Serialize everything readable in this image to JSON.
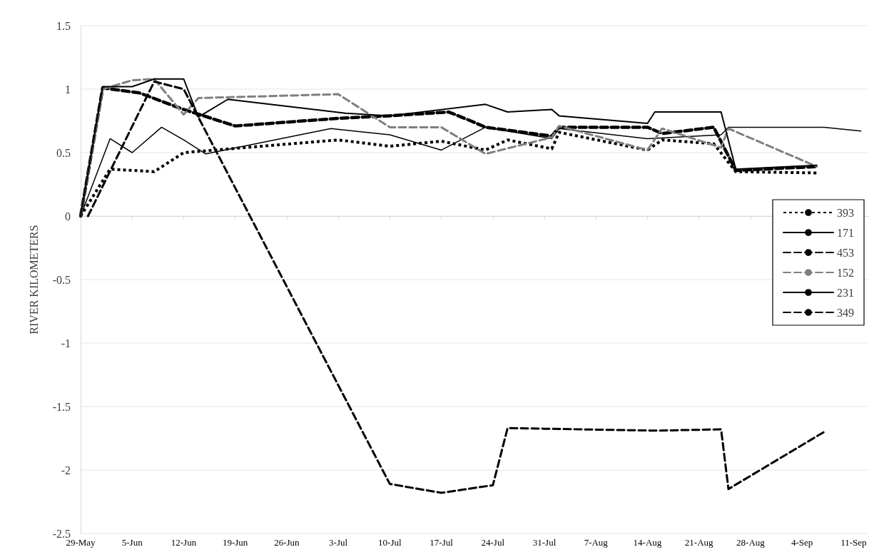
{
  "chart_data": {
    "type": "line",
    "ylabel": "RIVER KILOMETERS",
    "xlim": [
      "--05-29",
      "--09-13"
    ],
    "xticks": [
      {
        "value": "--05-29",
        "label": "29-May"
      },
      {
        "value": "--06-05",
        "label": "5-Jun"
      },
      {
        "value": "--06-12",
        "label": "12-Jun"
      },
      {
        "value": "--06-19",
        "label": "19-Jun"
      },
      {
        "value": "--06-26",
        "label": "26-Jun"
      },
      {
        "value": "--07-03",
        "label": "3-Jul"
      },
      {
        "value": "--07-10",
        "label": "10-Jul"
      },
      {
        "value": "--07-17",
        "label": "17-Jul"
      },
      {
        "value": "--07-24",
        "label": "24-Jul"
      },
      {
        "value": "--07-31",
        "label": "31-Jul"
      },
      {
        "value": "--08-07",
        "label": "7-Aug"
      },
      {
        "value": "--08-14",
        "label": "14-Aug"
      },
      {
        "value": "--08-21",
        "label": "21-Aug"
      },
      {
        "value": "--08-28",
        "label": "28-Aug"
      },
      {
        "value": "--09-04",
        "label": "4-Sep"
      },
      {
        "value": "--09-11",
        "label": "11-Sep"
      }
    ],
    "ylim": [
      -2.5,
      1.5
    ],
    "yticks": [
      -2.5,
      -2,
      -1.5,
      -1,
      -0.5,
      0,
      0.5,
      1,
      1.5
    ],
    "grid": "y",
    "legend": "right",
    "marker": "none",
    "series": [
      {
        "name": "393",
        "color": "#000000",
        "line_style": "dotted",
        "x": [
          "--05-29",
          "--06-02",
          "--06-08",
          "--06-12",
          "--07-03",
          "--07-10",
          "--07-17",
          "--07-23",
          "--07-26",
          "--08-01",
          "--08-02",
          "--08-14",
          "--08-16",
          "--08-23",
          "--08-26",
          "--09-06"
        ],
        "values": [
          0,
          0.37,
          0.35,
          0.5,
          0.6,
          0.55,
          0.59,
          0.52,
          0.6,
          0.53,
          0.66,
          0.52,
          0.6,
          0.57,
          0.35,
          0.34
        ]
      },
      {
        "name": "171",
        "color": "#000000",
        "line_style": "solid",
        "x": [
          "--05-29",
          "--06-02",
          "--06-05",
          "--06-09",
          "--06-12",
          "--06-15",
          "--07-02",
          "--07-10",
          "--07-17",
          "--07-23",
          "--08-01",
          "--08-02",
          "--08-14",
          "--08-24",
          "--08-25",
          "--09-07",
          "--09-12"
        ],
        "values": [
          0,
          0.61,
          0.5,
          0.7,
          0.6,
          0.49,
          0.69,
          0.64,
          0.52,
          0.7,
          0.61,
          0.69,
          0.61,
          0.64,
          0.7,
          0.7,
          0.67
        ]
      },
      {
        "name": "453",
        "color": "#000000",
        "line_style": "dashed",
        "x": [
          "--05-29",
          "--06-01",
          "--06-06",
          "--06-12",
          "--06-19",
          "--07-03",
          "--07-10",
          "--07-18",
          "--07-21",
          "--07-23",
          "--08-01",
          "--08-02",
          "--08-07",
          "--08-14",
          "--08-16",
          "--08-23",
          "--08-26",
          "--09-06"
        ],
        "values": [
          0,
          1.01,
          0.97,
          0.84,
          0.71,
          0.77,
          0.79,
          0.82,
          0.75,
          0.7,
          0.63,
          0.7,
          0.7,
          0.7,
          0.65,
          0.7,
          0.36,
          0.39
        ]
      },
      {
        "name": "152",
        "color": "#7f7f7f",
        "line_style": "dashed",
        "x": [
          "--05-29",
          "--06-01",
          "--06-05",
          "--06-08",
          "--06-12",
          "--06-14",
          "--07-03",
          "--07-10",
          "--07-17",
          "--07-23",
          "--08-01",
          "--08-02",
          "--08-14",
          "--08-16",
          "--08-24",
          "--08-25",
          "--09-06"
        ],
        "values": [
          0,
          1.0,
          1.07,
          1.08,
          0.8,
          0.93,
          0.96,
          0.7,
          0.7,
          0.49,
          0.62,
          0.71,
          0.52,
          0.69,
          0.54,
          0.69,
          0.39
        ]
      },
      {
        "name": "231",
        "color": "#000000",
        "line_style": "solid",
        "x": [
          "--05-29",
          "--06-01",
          "--06-05",
          "--06-08",
          "--06-12",
          "--06-14",
          "--06-18",
          "--07-04",
          "--07-10",
          "--07-23",
          "--07-26",
          "--08-01",
          "--08-02",
          "--08-14",
          "--08-15",
          "--08-24",
          "--08-26",
          "--09-06"
        ],
        "values": [
          0,
          1.02,
          1.02,
          1.08,
          1.08,
          0.78,
          0.92,
          0.81,
          0.79,
          0.88,
          0.82,
          0.84,
          0.79,
          0.73,
          0.82,
          0.82,
          0.37,
          0.4
        ]
      },
      {
        "name": "349",
        "color": "#000000",
        "line_style": "dashed",
        "x": [
          "--05-30",
          "--06-08",
          "--06-12",
          "--07-10",
          "--07-17",
          "--07-24",
          "--07-26",
          "--08-15",
          "--08-24",
          "--08-25",
          "--09-07"
        ],
        "values": [
          0,
          1.06,
          1.0,
          -2.11,
          -2.18,
          -2.12,
          -1.67,
          -1.69,
          -1.68,
          -2.15,
          -1.7
        ]
      }
    ]
  }
}
